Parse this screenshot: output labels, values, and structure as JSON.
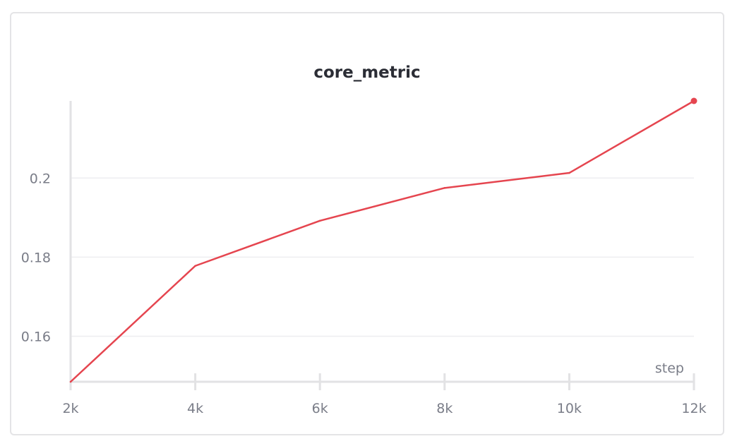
{
  "chart_data": {
    "type": "line",
    "title": "core_metric",
    "xlabel": "step",
    "ylabel": "",
    "xlim": [
      2000,
      12000
    ],
    "ylim": [
      0.1485,
      0.2195
    ],
    "x_ticks": [
      2000,
      4000,
      6000,
      8000,
      10000,
      12000
    ],
    "x_tick_labels": [
      "2k",
      "4k",
      "6k",
      "8k",
      "10k",
      "12k"
    ],
    "y_ticks": [
      0.16,
      0.18,
      0.2
    ],
    "y_tick_labels": [
      "0.16",
      "0.18",
      "0.2"
    ],
    "grid": true,
    "series": [
      {
        "color": "#e5454f",
        "x": [
          2000,
          4000,
          6000,
          8000,
          10000,
          12000
        ],
        "y": [
          0.1485,
          0.1778,
          0.1892,
          0.1975,
          0.2013,
          0.2195
        ]
      }
    ]
  }
}
